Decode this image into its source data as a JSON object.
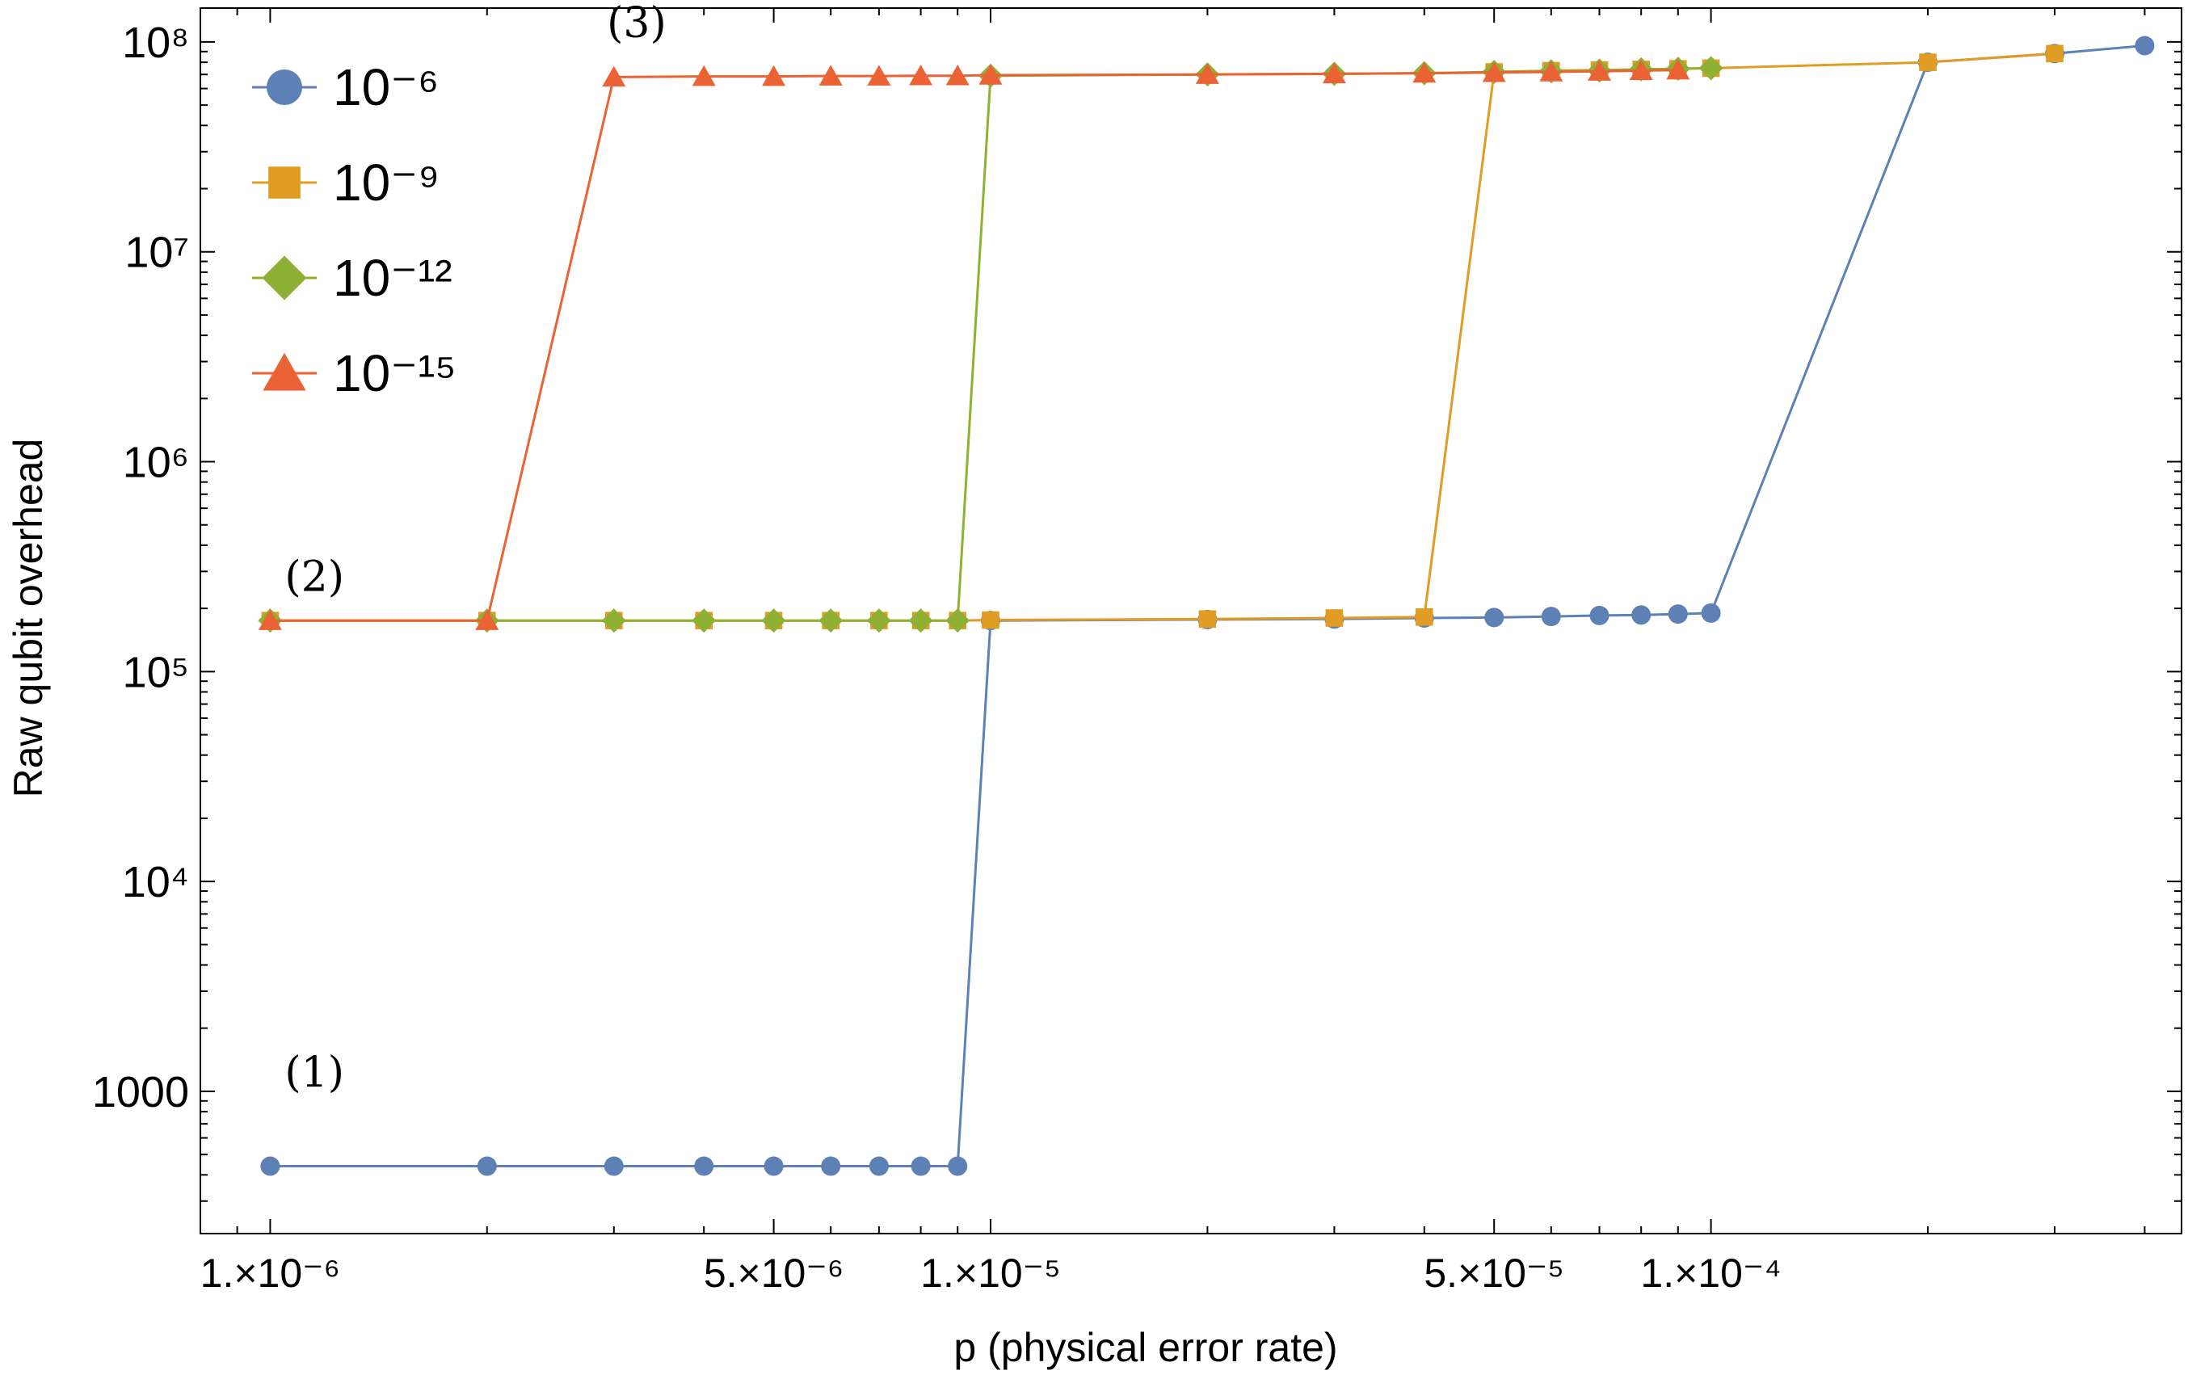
{
  "chart_data": {
    "type": "line",
    "xlabel": "p (physical error rate)",
    "ylabel": "Raw qubit overhead",
    "xscale": "log",
    "yscale": "log",
    "xlim": [
      8e-07,
      0.00045
    ],
    "ylim": [
      210,
      145000000.0
    ],
    "grid": false,
    "legend_position": "top-left",
    "x_ticks": [
      {
        "value": 1e-06,
        "label": "1.×10⁻⁶"
      },
      {
        "value": 5e-06,
        "label": "5.×10⁻⁶"
      },
      {
        "value": 1e-05,
        "label": "1.×10⁻⁵"
      },
      {
        "value": 5e-05,
        "label": "5.×10⁻⁵"
      },
      {
        "value": 0.0001,
        "label": "1.×10⁻⁴"
      }
    ],
    "y_ticks": [
      {
        "value": 1000,
        "label": "1000"
      },
      {
        "value": 10000,
        "label": "10⁴"
      },
      {
        "value": 100000,
        "label": "10⁵"
      },
      {
        "value": 1000000,
        "label": "10⁶"
      },
      {
        "value": 10000000,
        "label": "10⁷"
      },
      {
        "value": 100000000,
        "label": "10⁸"
      }
    ],
    "annotations": [
      {
        "text": "(1)",
        "x": 1e-06,
        "y": 1000
      },
      {
        "text": "(2)",
        "x": 1e-06,
        "y": 230000
      },
      {
        "text": "(3)",
        "x": 2.8e-06,
        "y": 100000000
      }
    ],
    "series": [
      {
        "name": "10⁻⁶",
        "color": "#5e81b5",
        "marker": "circle",
        "x": [
          1e-06,
          2e-06,
          3e-06,
          4e-06,
          5e-06,
          6e-06,
          7e-06,
          8e-06,
          9e-06,
          1e-05,
          2e-05,
          3e-05,
          4e-05,
          5e-05,
          6e-05,
          7e-05,
          8e-05,
          9e-05,
          0.0001,
          0.0002,
          0.0003,
          0.0004
        ],
        "y": [
          440,
          440,
          440,
          440,
          440,
          440,
          440,
          440,
          440,
          175000,
          177000,
          178000,
          180000,
          181000,
          183000,
          185000,
          186000,
          188000,
          190000,
          80000000,
          88000000,
          96000000
        ]
      },
      {
        "name": "10⁻⁹",
        "color": "#e19c24",
        "marker": "square",
        "x": [
          1e-06,
          2e-06,
          3e-06,
          4e-06,
          5e-06,
          6e-06,
          7e-06,
          8e-06,
          9e-06,
          1e-05,
          2e-05,
          3e-05,
          4e-05,
          5e-05,
          6e-05,
          7e-05,
          8e-05,
          9e-05,
          0.0001,
          0.0002,
          0.0003
        ],
        "y": [
          175000,
          175000,
          175000,
          175000,
          175000,
          175000,
          175000,
          175000,
          175000,
          176000,
          178000,
          180000,
          182000,
          72000000,
          73000000,
          73500000,
          74000000,
          74500000,
          75000000,
          80000000,
          88000000
        ]
      },
      {
        "name": "10⁻¹²",
        "color": "#8fb032",
        "marker": "diamond",
        "x": [
          1e-06,
          2e-06,
          3e-06,
          4e-06,
          5e-06,
          6e-06,
          7e-06,
          8e-06,
          9e-06,
          1e-05,
          2e-05,
          3e-05,
          4e-05,
          5e-05,
          6e-05,
          7e-05,
          8e-05,
          9e-05,
          0.0001
        ],
        "y": [
          175000,
          175000,
          175000,
          175000,
          175000,
          175000,
          175000,
          175000,
          175000,
          69000000,
          70000000,
          70500000,
          71000000,
          72000000,
          72500000,
          73000000,
          74000000,
          74500000,
          75000000
        ]
      },
      {
        "name": "10⁻¹⁵",
        "color": "#eb6235",
        "marker": "triangle",
        "x": [
          1e-06,
          2e-06,
          3e-06,
          4e-06,
          5e-06,
          6e-06,
          7e-06,
          8e-06,
          9e-06,
          1e-05,
          2e-05,
          3e-05,
          4e-05,
          5e-05,
          6e-05,
          7e-05,
          8e-05,
          9e-05
        ],
        "y": [
          175000,
          175000,
          68000000,
          68500000,
          68500000,
          68800000,
          68800000,
          69000000,
          69000000,
          69500000,
          70000000,
          70500000,
          71000000,
          71500000,
          72000000,
          72500000,
          73000000,
          73500000
        ]
      }
    ]
  }
}
